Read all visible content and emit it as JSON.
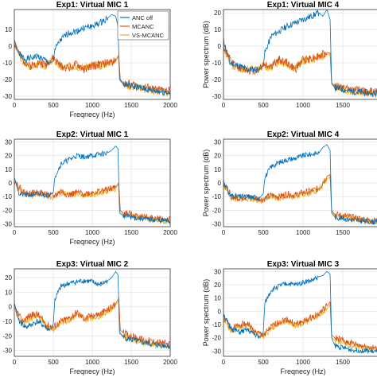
{
  "colors": {
    "anc_off": "#0072BD",
    "mcanc": "#D95319",
    "vs_mcanc": "#EDB120",
    "grid": "#e2e2e2",
    "axis": "#333333"
  },
  "chart_data": [
    {
      "type": "line",
      "title": "Exp1: Virtual MIC 1",
      "xlabel": "Freqnecy (Hz)",
      "ylabel": "",
      "xlim": [
        0,
        2000
      ],
      "ylim": [
        -32,
        22
      ],
      "xticks": [
        "0",
        "500",
        "1000",
        "1500",
        "2000"
      ],
      "yticks": [
        "-30",
        "-20",
        "-10",
        "0",
        "10"
      ],
      "grid": true,
      "legend": {
        "location": "top-right",
        "entries": [
          "ANC off",
          "MCANC",
          "VS-MCANC"
        ]
      },
      "series": [
        {
          "name": "ANC off",
          "x": [
            0,
            60,
            150,
            300,
            450,
            500,
            520,
            600,
            700,
            800,
            900,
            1000,
            1100,
            1200,
            1250,
            1300,
            1330,
            1350,
            1400,
            1600,
            1800,
            2000
          ],
          "y": [
            4,
            -5,
            -8,
            -6,
            -10,
            -9,
            -2,
            4,
            8,
            9,
            11,
            12,
            14,
            17,
            19,
            18,
            12,
            -20,
            -23,
            -25,
            -27,
            -28
          ]
        },
        {
          "name": "MCANC",
          "x": [
            0,
            100,
            200,
            300,
            400,
            500,
            600,
            700,
            800,
            900,
            1000,
            1100,
            1200,
            1300,
            1340,
            1360,
            1400,
            1600,
            1800,
            2000
          ],
          "y": [
            2,
            -8,
            -12,
            -10,
            -11,
            -7,
            -12,
            -13,
            -11,
            -14,
            -12,
            -11,
            -10,
            -9,
            -6,
            -20,
            -22,
            -24,
            -26,
            -27
          ]
        },
        {
          "name": "VS-MCANC",
          "x": [
            0,
            100,
            200,
            300,
            400,
            500,
            600,
            700,
            800,
            900,
            1000,
            1100,
            1200,
            1300,
            1340,
            1360,
            1400,
            1600,
            1800,
            2000
          ],
          "y": [
            1,
            -9,
            -12,
            -11,
            -12,
            -8,
            -13,
            -12,
            -12,
            -13,
            -11,
            -12,
            -10,
            -8,
            -5,
            -21,
            -23,
            -25,
            -27,
            -28
          ]
        }
      ]
    },
    {
      "type": "line",
      "title": "Exp1: Virtual MIC 4",
      "xlabel": "",
      "ylabel": "Power spectrum (dB)",
      "xlim": [
        0,
        2000
      ],
      "ylim": [
        -32,
        22
      ],
      "xticks": [
        "0",
        "500",
        "1000",
        "1500",
        "2"
      ],
      "yticks": [
        "-30",
        "-20",
        "-10",
        "0",
        "10",
        "20"
      ],
      "grid": true,
      "series": [
        {
          "name": "ANC off",
          "x": [
            0,
            80,
            200,
            300,
            450,
            500,
            520,
            600,
            700,
            800,
            900,
            1000,
            1100,
            1200,
            1250,
            1300,
            1340,
            1360,
            1400,
            1600,
            1800,
            2000
          ],
          "y": [
            4,
            -10,
            -12,
            -14,
            -14,
            -12,
            -4,
            6,
            9,
            12,
            14,
            16,
            18,
            20,
            18,
            22,
            16,
            -22,
            -25,
            -27,
            -28,
            -29
          ]
        },
        {
          "name": "MCANC",
          "x": [
            0,
            100,
            200,
            300,
            400,
            500,
            600,
            700,
            800,
            900,
            1000,
            1100,
            1200,
            1300,
            1340,
            1360,
            1400,
            1600,
            1800,
            2000
          ],
          "y": [
            0,
            -10,
            -13,
            -14,
            -15,
            -11,
            -12,
            -8,
            -10,
            -14,
            -8,
            -7,
            -6,
            -4,
            -4,
            -22,
            -24,
            -26,
            -27,
            -28
          ]
        },
        {
          "name": "VS-MCANC",
          "x": [
            0,
            100,
            200,
            300,
            400,
            500,
            600,
            700,
            800,
            900,
            1000,
            1100,
            1200,
            1300,
            1340,
            1360,
            1400,
            1600,
            1800,
            2000
          ],
          "y": [
            -1,
            -11,
            -14,
            -13,
            -14,
            -12,
            -13,
            -9,
            -11,
            -13,
            -9,
            -8,
            -7,
            -5,
            -5,
            -23,
            -25,
            -27,
            -28,
            -29
          ]
        }
      ]
    },
    {
      "type": "line",
      "title": "Exp2: Virtual MIC 1",
      "xlabel": "Freqnecy (Hz)",
      "ylabel": "",
      "xlim": [
        0,
        2000
      ],
      "ylim": [
        -32,
        32
      ],
      "xticks": [
        "0",
        "500",
        "1000",
        "1500",
        "2000"
      ],
      "yticks": [
        "-30",
        "-20",
        "-10",
        "0",
        "10",
        "20",
        "30"
      ],
      "grid": true,
      "series": [
        {
          "name": "ANC off",
          "x": [
            0,
            60,
            150,
            300,
            450,
            500,
            520,
            600,
            700,
            800,
            900,
            1000,
            1100,
            1200,
            1250,
            1300,
            1330,
            1350,
            1400,
            1600,
            1800,
            2000
          ],
          "y": [
            4,
            -8,
            -9,
            -8,
            -9,
            -7,
            5,
            14,
            17,
            20,
            19,
            20,
            21,
            22,
            24,
            27,
            25,
            -22,
            -24,
            -26,
            -27,
            -28
          ]
        },
        {
          "name": "MCANC",
          "x": [
            0,
            100,
            200,
            300,
            400,
            500,
            600,
            700,
            800,
            900,
            1000,
            1100,
            1200,
            1300,
            1340,
            1360,
            1400,
            1600,
            1800,
            2000
          ],
          "y": [
            2,
            -6,
            -8,
            -7,
            -8,
            -10,
            -6,
            -9,
            -7,
            -8,
            -7,
            -6,
            -5,
            -3,
            0,
            -20,
            -22,
            -24,
            -26,
            -27
          ]
        },
        {
          "name": "VS-MCANC",
          "x": [
            0,
            100,
            200,
            300,
            400,
            500,
            600,
            700,
            800,
            900,
            1000,
            1100,
            1200,
            1300,
            1340,
            1360,
            1400,
            1600,
            1800,
            2000
          ],
          "y": [
            1,
            -7,
            -9,
            -8,
            -9,
            -11,
            -7,
            -8,
            -8,
            -9,
            -8,
            -7,
            -6,
            -4,
            -1,
            -21,
            -23,
            -25,
            -27,
            -28
          ]
        }
      ]
    },
    {
      "type": "line",
      "title": "Exp2: Virtual MIC 4",
      "xlabel": "",
      "ylabel": "Power spectrum (dB)",
      "xlim": [
        0,
        2000
      ],
      "ylim": [
        -32,
        32
      ],
      "xticks": [
        "0",
        "500",
        "1000",
        "1500",
        "2"
      ],
      "yticks": [
        "-30",
        "-20",
        "-10",
        "0",
        "10",
        "20",
        "30"
      ],
      "grid": true,
      "series": [
        {
          "name": "ANC off",
          "x": [
            0,
            80,
            200,
            300,
            450,
            500,
            520,
            600,
            700,
            800,
            900,
            1000,
            1100,
            1200,
            1250,
            1300,
            1340,
            1360,
            1400,
            1600,
            1800,
            2000
          ],
          "y": [
            2,
            -9,
            -10,
            -10,
            -11,
            -8,
            4,
            12,
            15,
            17,
            18,
            20,
            21,
            22,
            26,
            28,
            24,
            -22,
            -25,
            -27,
            -28,
            -29
          ]
        },
        {
          "name": "MCANC",
          "x": [
            0,
            100,
            200,
            300,
            400,
            500,
            600,
            700,
            800,
            900,
            1000,
            1100,
            1200,
            1300,
            1340,
            1360,
            1400,
            1600,
            1800,
            2000
          ],
          "y": [
            0,
            -10,
            -11,
            -10,
            -11,
            -12,
            -9,
            -10,
            -8,
            -9,
            -7,
            -6,
            -4,
            5,
            6,
            -20,
            -23,
            -25,
            -27,
            -28
          ]
        },
        {
          "name": "VS-MCANC",
          "x": [
            0,
            100,
            200,
            300,
            400,
            500,
            600,
            700,
            800,
            900,
            1000,
            1100,
            1200,
            1300,
            1340,
            1360,
            1400,
            1600,
            1800,
            2000
          ],
          "y": [
            -1,
            -11,
            -12,
            -11,
            -12,
            -13,
            -10,
            -11,
            -9,
            -10,
            -8,
            -7,
            -5,
            3,
            4,
            -21,
            -24,
            -26,
            -28,
            -29
          ]
        }
      ]
    },
    {
      "type": "line",
      "title": "Exp3: Virtual MIC 2",
      "xlabel": "Freqnecy (Hz)",
      "ylabel": "",
      "xlim": [
        0,
        2000
      ],
      "ylim": [
        -34,
        26
      ],
      "xticks": [
        "0",
        "500",
        "1000",
        "1500",
        "2000"
      ],
      "yticks": [
        "-30",
        "-20",
        "-10",
        "0",
        "10",
        "20"
      ],
      "grid": true,
      "series": [
        {
          "name": "ANC off",
          "x": [
            0,
            60,
            150,
            300,
            450,
            500,
            520,
            600,
            700,
            800,
            900,
            1000,
            1100,
            1200,
            1250,
            1300,
            1330,
            1350,
            1400,
            1600,
            1800,
            2000
          ],
          "y": [
            2,
            -10,
            -14,
            -10,
            -16,
            -12,
            5,
            14,
            16,
            17,
            18,
            17,
            15,
            18,
            20,
            24,
            22,
            -18,
            -21,
            -24,
            -26,
            -27
          ]
        },
        {
          "name": "MCANC",
          "x": [
            0,
            100,
            200,
            300,
            400,
            500,
            600,
            700,
            800,
            900,
            1000,
            1100,
            1200,
            1300,
            1340,
            1360,
            1400,
            1600,
            1800,
            2000
          ],
          "y": [
            0,
            -10,
            -6,
            -5,
            -12,
            -14,
            -10,
            -8,
            -4,
            -8,
            -6,
            -5,
            -2,
            2,
            6,
            -16,
            -18,
            -22,
            -24,
            -26
          ]
        },
        {
          "name": "VS-MCANC",
          "x": [
            0,
            100,
            200,
            300,
            400,
            500,
            600,
            700,
            800,
            900,
            1000,
            1100,
            1200,
            1300,
            1340,
            1360,
            1400,
            1600,
            1800,
            2000
          ],
          "y": [
            -2,
            -12,
            -8,
            -6,
            -13,
            -15,
            -11,
            -9,
            -5,
            -9,
            -7,
            -6,
            -3,
            1,
            4,
            -18,
            -20,
            -24,
            -26,
            -28
          ]
        }
      ]
    },
    {
      "type": "line",
      "title": "Exp3: Virtual MIC 3",
      "xlabel": "Freqnecy (Hz)",
      "ylabel": "Power spectrum (dB)",
      "xlim": [
        0,
        2000
      ],
      "ylim": [
        -34,
        32
      ],
      "xticks": [
        "0",
        "500",
        "1000",
        "1500",
        "2"
      ],
      "yticks": [
        "-30",
        "-20",
        "-10",
        "0",
        "10",
        "20",
        "30"
      ],
      "grid": true,
      "series": [
        {
          "name": "ANC off",
          "x": [
            0,
            80,
            200,
            300,
            450,
            500,
            520,
            600,
            700,
            800,
            900,
            1000,
            1100,
            1200,
            1250,
            1300,
            1340,
            1360,
            1400,
            1600,
            1800,
            2000
          ],
          "y": [
            -2,
            -12,
            -16,
            -14,
            -20,
            -16,
            6,
            16,
            19,
            21,
            20,
            22,
            23,
            26,
            27,
            30,
            28,
            -20,
            -26,
            -29,
            -30,
            -31
          ]
        },
        {
          "name": "MCANC",
          "x": [
            0,
            100,
            200,
            300,
            400,
            500,
            600,
            700,
            800,
            900,
            1000,
            1100,
            1200,
            1300,
            1340,
            1360,
            1400,
            1600,
            1800,
            2000
          ],
          "y": [
            -4,
            -14,
            -10,
            -9,
            -16,
            -18,
            -12,
            -8,
            -6,
            -10,
            -8,
            -5,
            -2,
            4,
            7,
            -18,
            -20,
            -24,
            -27,
            -29
          ]
        },
        {
          "name": "VS-MCANC",
          "x": [
            0,
            100,
            200,
            300,
            400,
            500,
            600,
            700,
            800,
            900,
            1000,
            1100,
            1200,
            1300,
            1340,
            1360,
            1400,
            1600,
            1800,
            2000
          ],
          "y": [
            -6,
            -15,
            -12,
            -10,
            -17,
            -19,
            -13,
            -9,
            -7,
            -11,
            -9,
            -6,
            -3,
            2,
            5,
            -20,
            -22,
            -26,
            -28,
            -30
          ]
        }
      ]
    }
  ]
}
